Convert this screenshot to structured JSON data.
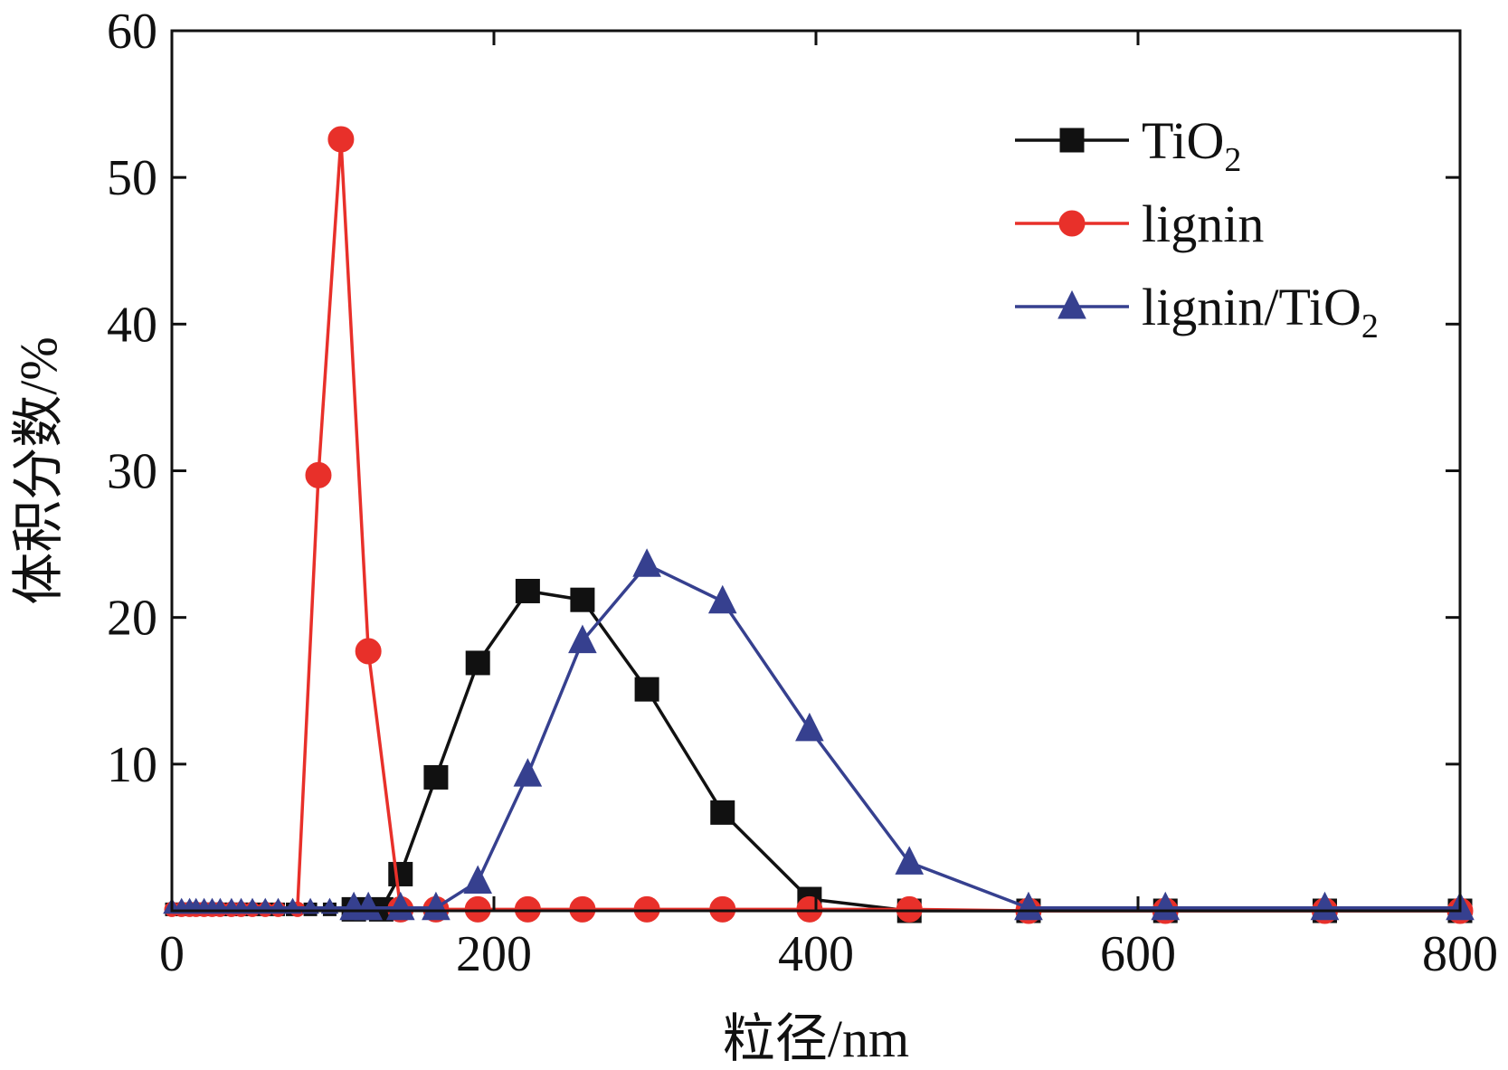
{
  "chart_data": {
    "type": "line",
    "title": "",
    "xlabel": "粒径/nm",
    "ylabel": "体积分数/%",
    "xlim": [
      0,
      800
    ],
    "ylim": [
      0,
      60
    ],
    "xticks": [
      0,
      200,
      400,
      600,
      800
    ],
    "yticks": [
      10,
      20,
      30,
      40,
      50,
      60
    ],
    "grid": false,
    "legend_position": "top-right",
    "series": [
      {
        "name": "TiO2",
        "legend_main": "TiO",
        "legend_sub": "2",
        "color": "#111111",
        "marker": "square",
        "x": [
          0,
          6,
          11,
          15,
          20,
          25,
          30,
          37,
          43,
          50,
          58,
          66,
          75,
          86,
          98,
          113,
          130,
          142,
          164,
          190,
          221,
          255,
          295,
          342,
          396,
          458,
          532,
          617,
          716,
          800
        ],
        "y": [
          0.1,
          0.1,
          0.1,
          0.1,
          0.1,
          0.1,
          0.1,
          0.1,
          0.1,
          0.1,
          0.1,
          0.1,
          0.1,
          0.1,
          0.1,
          0.1,
          0.1,
          2.5,
          9.1,
          16.9,
          21.8,
          21.2,
          15.1,
          6.7,
          0.8,
          0.0,
          0.0,
          0.0,
          0.0,
          0.0
        ]
      },
      {
        "name": "lignin",
        "legend_main": "lignin",
        "legend_sub": "",
        "color": "#e8302a",
        "marker": "circle",
        "x": [
          0,
          6,
          11,
          15,
          20,
          25,
          30,
          37,
          43,
          50,
          58,
          66,
          78,
          91,
          105,
          122,
          142,
          164,
          190,
          221,
          255,
          295,
          342,
          396,
          458,
          532,
          617,
          716,
          800
        ],
        "y": [
          0.1,
          0.1,
          0.1,
          0.1,
          0.1,
          0.1,
          0.1,
          0.1,
          0.1,
          0.1,
          0.1,
          0.1,
          0.1,
          29.7,
          52.6,
          17.7,
          0.1,
          0.1,
          0.1,
          0.1,
          0.1,
          0.1,
          0.1,
          0.1,
          0.1,
          0.0,
          0.0,
          0.0,
          0.0
        ]
      },
      {
        "name": "lignin/TiO2",
        "legend_main": "lignin/TiO",
        "legend_sub": "2",
        "color": "#36408f",
        "marker": "triangle",
        "x": [
          0,
          6,
          11,
          15,
          20,
          25,
          30,
          37,
          43,
          50,
          58,
          66,
          75,
          86,
          98,
          113,
          122,
          142,
          164,
          190,
          221,
          255,
          295,
          342,
          396,
          458,
          532,
          617,
          716,
          800
        ],
        "y": [
          0.2,
          0.2,
          0.2,
          0.2,
          0.2,
          0.2,
          0.2,
          0.2,
          0.2,
          0.2,
          0.2,
          0.2,
          0.2,
          0.2,
          0.2,
          0.2,
          0.2,
          0.2,
          0.2,
          2.0,
          9.3,
          18.4,
          23.6,
          21.1,
          12.4,
          3.3,
          0.2,
          0.2,
          0.2,
          0.2
        ]
      }
    ]
  }
}
